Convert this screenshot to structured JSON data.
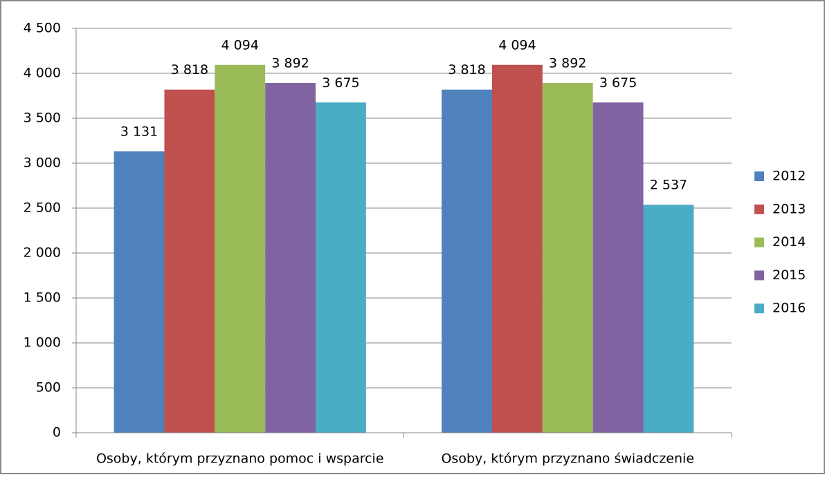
{
  "chart_data": {
    "type": "bar",
    "categories": [
      "Osoby, którym przyznano pomoc i wsparcie",
      "Osoby, którym przyznano świadczenie"
    ],
    "series": [
      {
        "name": "2012",
        "color": "#4f81bd",
        "values": [
          3131,
          3818
        ],
        "value_labels": [
          "3 131",
          "3 818"
        ]
      },
      {
        "name": "2013",
        "color": "#c0504d",
        "values": [
          3818,
          4094
        ],
        "value_labels": [
          "3 818",
          "4 094"
        ]
      },
      {
        "name": "2014",
        "color": "#9bbb59",
        "values": [
          4094,
          3892
        ],
        "value_labels": [
          "4 094",
          "3 892"
        ]
      },
      {
        "name": "2015",
        "color": "#8064a2",
        "values": [
          3892,
          3675
        ],
        "value_labels": [
          "3 892",
          "3 675"
        ]
      },
      {
        "name": "2016",
        "color": "#4bacc6",
        "values": [
          3675,
          2537
        ],
        "value_labels": [
          "3 675",
          "2 537"
        ]
      }
    ],
    "ylim": [
      0,
      4500
    ],
    "yticks": [
      0,
      500,
      {
        "value": 1000,
        "label": "1 000"
      },
      {
        "value": 1500,
        "label": "1 500"
      },
      {
        "value": 2000,
        "label": "2 000"
      },
      {
        "value": 2500,
        "label": "2 500"
      },
      {
        "value": 3000,
        "label": "3 000"
      },
      {
        "value": 3500,
        "label": "3 500"
      },
      {
        "value": 4000,
        "label": "4 000"
      },
      {
        "value": 4500,
        "label": "4 500"
      }
    ],
    "grid": true,
    "legend": "right"
  }
}
